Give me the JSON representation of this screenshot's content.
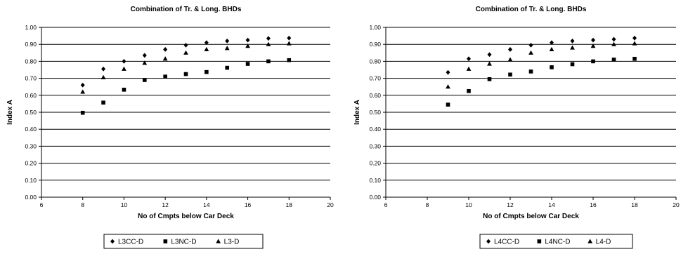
{
  "chart_data": [
    {
      "type": "scatter",
      "title": "Combination of Tr. & Long. BHDs",
      "xlabel": "No of Cmpts below Car Deck",
      "ylabel": "Index A",
      "xlim": [
        6,
        20
      ],
      "ylim": [
        0,
        1
      ],
      "xticks": [
        "6",
        "8",
        "10",
        "12",
        "14",
        "16",
        "18",
        "20"
      ],
      "yticks": [
        "0.00",
        "0.10",
        "0.20",
        "0.30",
        "0.40",
        "0.50",
        "0.60",
        "0.70",
        "0.80",
        "0.90",
        "1.00"
      ],
      "grid": "horizontal",
      "legend_position": "bottom",
      "series": [
        {
          "name": "L3CC-D",
          "marker": "diamond",
          "x": [
            8,
            9,
            10,
            11,
            12,
            13,
            14,
            15,
            16,
            17,
            18
          ],
          "y": [
            0.66,
            0.755,
            0.8,
            0.835,
            0.87,
            0.895,
            0.91,
            0.92,
            0.925,
            0.935,
            0.937
          ]
        },
        {
          "name": "L3NC-D",
          "marker": "square",
          "x": [
            8,
            9,
            10,
            11,
            12,
            13,
            14,
            15,
            16,
            17,
            18
          ],
          "y": [
            0.497,
            0.557,
            0.633,
            0.69,
            0.71,
            0.725,
            0.737,
            0.762,
            0.785,
            0.8,
            0.807
          ]
        },
        {
          "name": "L3-D",
          "marker": "triangle",
          "x": [
            8,
            9,
            10,
            11,
            12,
            13,
            14,
            15,
            16,
            17,
            18
          ],
          "y": [
            0.62,
            0.705,
            0.755,
            0.79,
            0.815,
            0.85,
            0.87,
            0.877,
            0.89,
            0.9,
            0.905
          ]
        }
      ]
    },
    {
      "type": "scatter",
      "title": "Combination of Tr. & Long. BHDs",
      "xlabel": "No of Cmpts below Car Deck",
      "ylabel": "Index A",
      "xlim": [
        6,
        20
      ],
      "ylim": [
        0,
        1
      ],
      "xticks": [
        "6",
        "8",
        "10",
        "12",
        "14",
        "16",
        "18",
        "20"
      ],
      "yticks": [
        "0.00",
        "0.10",
        "0.20",
        "0.30",
        "0.40",
        "0.50",
        "0.60",
        "0.70",
        "0.80",
        "0.90",
        "1.00"
      ],
      "grid": "horizontal",
      "legend_position": "bottom",
      "series": [
        {
          "name": "L4CC-D",
          "marker": "diamond",
          "x": [
            9,
            10,
            11,
            12,
            13,
            14,
            15,
            16,
            17,
            18
          ],
          "y": [
            0.735,
            0.815,
            0.84,
            0.87,
            0.895,
            0.91,
            0.92,
            0.925,
            0.93,
            0.937
          ]
        },
        {
          "name": "L4NC-D",
          "marker": "square",
          "x": [
            9,
            10,
            11,
            12,
            13,
            14,
            15,
            16,
            17,
            18
          ],
          "y": [
            0.545,
            0.625,
            0.695,
            0.722,
            0.74,
            0.765,
            0.783,
            0.8,
            0.81,
            0.815
          ]
        },
        {
          "name": "L4-D",
          "marker": "triangle",
          "x": [
            9,
            10,
            11,
            12,
            13,
            14,
            15,
            16,
            17,
            18
          ],
          "y": [
            0.65,
            0.755,
            0.785,
            0.81,
            0.85,
            0.87,
            0.88,
            0.89,
            0.9,
            0.905
          ]
        }
      ]
    }
  ]
}
